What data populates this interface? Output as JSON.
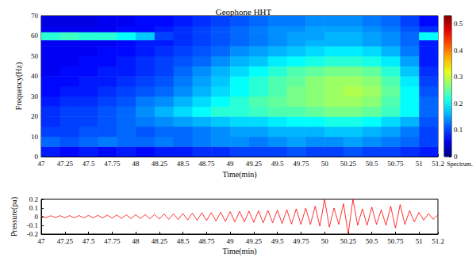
{
  "chart_data": [
    {
      "type": "heatmap",
      "title": "Geophone HHT",
      "xlabel": "Time(min)",
      "ylabel": "Frequency(Hz)",
      "xlim": [
        47,
        51.2
      ],
      "xticks": [
        47,
        47.25,
        47.5,
        47.75,
        48,
        48.25,
        48.5,
        48.75,
        49,
        49.25,
        49.5,
        49.75,
        50,
        50.25,
        50.5,
        50.75,
        51,
        51.2
      ],
      "ylim": [
        0,
        70
      ],
      "yticks": [
        0,
        10,
        20,
        30,
        40,
        50,
        60,
        70
      ],
      "grid": false,
      "x_edges": [
        47,
        47.2,
        47.4,
        47.6,
        47.8,
        48,
        48.2,
        48.4,
        48.6,
        48.8,
        49,
        49.2,
        49.4,
        49.6,
        49.8,
        50,
        50.2,
        50.4,
        50.6,
        50.8,
        51,
        51.2
      ],
      "y_edges": [
        0,
        5,
        10,
        15,
        20,
        25,
        30,
        35,
        40,
        45,
        50,
        55,
        58,
        62,
        65,
        70
      ],
      "cells": [
        [
          0.08,
          0.07,
          0.08,
          0.07,
          0.08,
          0.07,
          0.08,
          0.08,
          0.09,
          0.09,
          0.1,
          0.1,
          0.1,
          0.11,
          0.1,
          0.1,
          0.11,
          0.1,
          0.1,
          0.09,
          0.08
        ],
        [
          0.12,
          0.11,
          0.12,
          0.13,
          0.12,
          0.12,
          0.13,
          0.12,
          0.13,
          0.14,
          0.14,
          0.13,
          0.14,
          0.15,
          0.14,
          0.14,
          0.15,
          0.14,
          0.13,
          0.12,
          0.1
        ],
        [
          0.1,
          0.1,
          0.11,
          0.11,
          0.12,
          0.11,
          0.12,
          0.12,
          0.13,
          0.14,
          0.15,
          0.15,
          0.16,
          0.16,
          0.16,
          0.17,
          0.17,
          0.16,
          0.15,
          0.13,
          0.1
        ],
        [
          0.09,
          0.1,
          0.1,
          0.11,
          0.12,
          0.13,
          0.14,
          0.15,
          0.16,
          0.17,
          0.18,
          0.18,
          0.19,
          0.2,
          0.2,
          0.21,
          0.21,
          0.2,
          0.18,
          0.16,
          0.11
        ],
        [
          0.09,
          0.1,
          0.1,
          0.11,
          0.12,
          0.14,
          0.16,
          0.18,
          0.2,
          0.22,
          0.22,
          0.23,
          0.24,
          0.24,
          0.25,
          0.26,
          0.26,
          0.25,
          0.23,
          0.2,
          0.12
        ],
        [
          0.08,
          0.09,
          0.09,
          0.1,
          0.11,
          0.13,
          0.14,
          0.16,
          0.18,
          0.2,
          0.22,
          0.24,
          0.25,
          0.26,
          0.27,
          0.28,
          0.28,
          0.27,
          0.24,
          0.2,
          0.12
        ],
        [
          0.07,
          0.08,
          0.08,
          0.09,
          0.1,
          0.11,
          0.12,
          0.14,
          0.16,
          0.18,
          0.2,
          0.22,
          0.24,
          0.26,
          0.27,
          0.28,
          0.29,
          0.28,
          0.25,
          0.2,
          0.11
        ],
        [
          0.07,
          0.07,
          0.08,
          0.08,
          0.09,
          0.1,
          0.11,
          0.13,
          0.15,
          0.17,
          0.2,
          0.22,
          0.24,
          0.25,
          0.27,
          0.28,
          0.28,
          0.27,
          0.24,
          0.19,
          0.1
        ],
        [
          0.06,
          0.07,
          0.07,
          0.08,
          0.08,
          0.09,
          0.1,
          0.12,
          0.14,
          0.16,
          0.18,
          0.2,
          0.22,
          0.24,
          0.25,
          0.26,
          0.26,
          0.25,
          0.22,
          0.17,
          0.09
        ],
        [
          0.06,
          0.06,
          0.07,
          0.07,
          0.08,
          0.09,
          0.1,
          0.11,
          0.12,
          0.14,
          0.16,
          0.17,
          0.19,
          0.2,
          0.21,
          0.22,
          0.22,
          0.21,
          0.19,
          0.15,
          0.08
        ],
        [
          0.06,
          0.06,
          0.06,
          0.07,
          0.07,
          0.08,
          0.09,
          0.1,
          0.11,
          0.12,
          0.14,
          0.15,
          0.16,
          0.17,
          0.18,
          0.19,
          0.19,
          0.18,
          0.16,
          0.13,
          0.08
        ],
        [
          0.06,
          0.06,
          0.06,
          0.06,
          0.07,
          0.08,
          0.08,
          0.09,
          0.1,
          0.11,
          0.12,
          0.13,
          0.14,
          0.15,
          0.16,
          0.16,
          0.16,
          0.15,
          0.14,
          0.12,
          0.08
        ],
        [
          0.22,
          0.23,
          0.22,
          0.22,
          0.2,
          0.17,
          0.1,
          0.09,
          0.1,
          0.11,
          0.12,
          0.13,
          0.14,
          0.15,
          0.15,
          0.16,
          0.16,
          0.15,
          0.14,
          0.12,
          0.2
        ],
        [
          0.06,
          0.06,
          0.06,
          0.06,
          0.07,
          0.07,
          0.08,
          0.09,
          0.1,
          0.11,
          0.12,
          0.13,
          0.14,
          0.14,
          0.15,
          0.15,
          0.15,
          0.14,
          0.13,
          0.11,
          0.09
        ],
        [
          0.05,
          0.05,
          0.05,
          0.06,
          0.06,
          0.07,
          0.07,
          0.08,
          0.09,
          0.1,
          0.11,
          0.12,
          0.13,
          0.13,
          0.14,
          0.14,
          0.14,
          0.13,
          0.12,
          0.1,
          0.07
        ]
      ],
      "colorbar": {
        "label": "Spectrum.",
        "lim": [
          0,
          0.53
        ],
        "ticks": [
          0,
          0.1,
          0.2,
          0.3,
          0.4,
          0.5
        ]
      }
    },
    {
      "type": "line",
      "xlabel": "Time(min)",
      "ylabel": "Pressure(pa)",
      "color": "#ff0000",
      "grid": false,
      "xlim": [
        47,
        51.2
      ],
      "xticks": [
        47,
        47.25,
        47.5,
        47.75,
        48,
        48.25,
        48.5,
        48.75,
        49,
        49.25,
        49.5,
        49.75,
        50,
        50.25,
        50.5,
        50.75,
        51,
        51.2
      ],
      "ylim": [
        -0.2,
        0.2
      ],
      "yticks": [
        -0.2,
        -0.1,
        0,
        0.1,
        0.2
      ],
      "x": [
        47,
        47.05,
        47.1,
        47.15,
        47.2,
        47.25,
        47.3,
        47.35,
        47.4,
        47.45,
        47.5,
        47.55,
        47.6,
        47.65,
        47.7,
        47.75,
        47.8,
        47.85,
        47.9,
        47.95,
        48,
        48.05,
        48.1,
        48.15,
        48.2,
        48.25,
        48.3,
        48.35,
        48.4,
        48.45,
        48.5,
        48.55,
        48.6,
        48.65,
        48.7,
        48.75,
        48.8,
        48.85,
        48.9,
        48.95,
        49,
        49.05,
        49.1,
        49.15,
        49.2,
        49.25,
        49.3,
        49.35,
        49.4,
        49.45,
        49.5,
        49.55,
        49.6,
        49.65,
        49.7,
        49.75,
        49.8,
        49.85,
        49.9,
        49.95,
        50,
        50.05,
        50.1,
        50.15,
        50.2,
        50.25,
        50.3,
        50.35,
        50.4,
        50.45,
        50.5,
        50.55,
        50.6,
        50.65,
        50.7,
        50.75,
        50.8,
        50.85,
        50.9,
        50.95,
        51,
        51.05,
        51.1,
        51.15,
        51.2
      ],
      "values": [
        0.01,
        -0.012,
        0.011,
        -0.01,
        0.012,
        -0.013,
        0.012,
        -0.014,
        0.013,
        -0.014,
        0.015,
        -0.014,
        0.016,
        -0.015,
        0.017,
        -0.018,
        0.019,
        -0.02,
        0.021,
        -0.022,
        0.023,
        -0.022,
        0.024,
        -0.025,
        0.026,
        -0.028,
        0.03,
        -0.031,
        0.033,
        -0.034,
        0.036,
        -0.038,
        0.04,
        -0.042,
        0.044,
        -0.045,
        0.047,
        -0.05,
        0.052,
        -0.055,
        0.058,
        -0.06,
        0.062,
        -0.06,
        0.065,
        -0.066,
        0.068,
        -0.07,
        0.072,
        -0.07,
        0.075,
        -0.078,
        0.08,
        -0.085,
        0.09,
        -0.09,
        0.1,
        -0.09,
        0.12,
        -0.11,
        0.2,
        -0.12,
        0.1,
        -0.09,
        0.15,
        -0.2,
        0.2,
        -0.1,
        0.09,
        -0.1,
        0.11,
        -0.09,
        0.08,
        -0.1,
        0.12,
        -0.13,
        0.14,
        -0.09,
        0.07,
        -0.06,
        0.05,
        -0.04,
        0.035,
        -0.03,
        0.02
      ]
    }
  ]
}
